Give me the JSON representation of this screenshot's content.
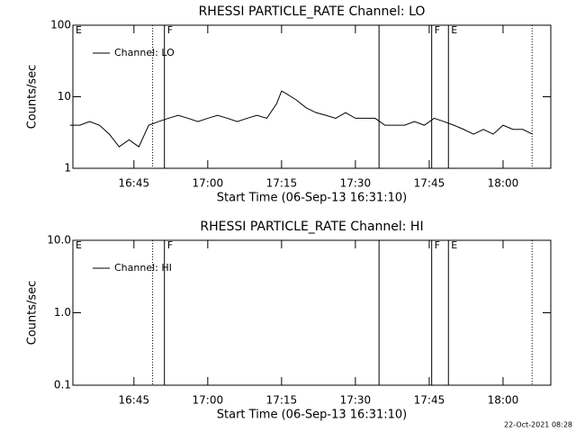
{
  "chart_data": [
    {
      "type": "line",
      "title": "RHESSI PARTICLE_RATE Channel: LO",
      "xlabel": "Start Time (06-Sep-13 16:31:10)",
      "ylabel": "Counts/sec",
      "log_y": true,
      "ylim": [
        1,
        100
      ],
      "yticks": [
        1,
        10,
        100
      ],
      "xlim": [
        992.6,
        1089.7
      ],
      "xticks": [
        {
          "value": 1005,
          "label": "16:45"
        },
        {
          "value": 1020,
          "label": "17:00"
        },
        {
          "value": 1035,
          "label": "17:15"
        },
        {
          "value": 1050,
          "label": "17:30"
        },
        {
          "value": 1065,
          "label": "17:45"
        },
        {
          "value": 1080,
          "label": "18:00"
        }
      ],
      "vlines": [
        {
          "x": 1008.8,
          "style": "dotted"
        },
        {
          "x": 1011.2,
          "style": "solid"
        },
        {
          "x": 1054.8,
          "style": "solid"
        },
        {
          "x": 1065.5,
          "style": "solid"
        },
        {
          "x": 1068.9,
          "style": "solid"
        },
        {
          "x": 1085.9,
          "style": "dotted"
        }
      ],
      "annotations": [
        {
          "x": 992.6,
          "text": "E"
        },
        {
          "x": 1011.2,
          "text": "F"
        },
        {
          "x": 1065.5,
          "text": "F"
        },
        {
          "x": 1068.9,
          "text": "E"
        }
      ],
      "series": [
        {
          "name": "Channel: LO",
          "color": "#000000",
          "x": [
            992,
            994,
            996,
            998,
            1000,
            1002,
            1004,
            1006,
            1008,
            1010,
            1012,
            1014,
            1016,
            1018,
            1020,
            1022,
            1024,
            1026,
            1028,
            1030,
            1032,
            1034,
            1035,
            1036,
            1038,
            1040,
            1042,
            1044,
            1046,
            1048,
            1050,
            1052,
            1054,
            1056,
            1058,
            1060,
            1062,
            1064,
            1066,
            1068,
            1070,
            1072,
            1074,
            1076,
            1078,
            1080,
            1082,
            1084,
            1086
          ],
          "values": [
            4,
            4,
            4.5,
            4,
            3,
            2,
            2.5,
            2,
            4,
            4.5,
            5,
            5.5,
            5,
            4.5,
            5,
            5.5,
            5,
            4.5,
            5,
            5.5,
            5,
            8,
            12,
            11,
            9,
            7,
            6,
            5.5,
            5,
            6,
            5,
            5,
            5,
            4,
            4,
            4,
            4.5,
            4,
            5,
            4.5,
            4,
            3.5,
            3,
            3.5,
            3,
            4,
            3.5,
            3.5,
            3
          ]
        }
      ]
    },
    {
      "type": "line",
      "title": "RHESSI PARTICLE_RATE Channel: HI",
      "xlabel": "Start Time (06-Sep-13 16:31:10)",
      "ylabel": "Counts/sec",
      "log_y": true,
      "ylim": [
        0.1,
        10
      ],
      "yticks": [
        0.1,
        {
          "value": 1,
          "label": "1.0"
        },
        {
          "value": 10,
          "label": "10.0"
        }
      ],
      "xlim": [
        992.6,
        1089.7
      ],
      "xticks": [
        {
          "value": 1005,
          "label": "16:45"
        },
        {
          "value": 1020,
          "label": "17:00"
        },
        {
          "value": 1035,
          "label": "17:15"
        },
        {
          "value": 1050,
          "label": "17:30"
        },
        {
          "value": 1065,
          "label": "17:45"
        },
        {
          "value": 1080,
          "label": "18:00"
        }
      ],
      "vlines": [
        {
          "x": 1008.8,
          "style": "dotted"
        },
        {
          "x": 1011.2,
          "style": "solid"
        },
        {
          "x": 1054.8,
          "style": "solid"
        },
        {
          "x": 1065.5,
          "style": "solid"
        },
        {
          "x": 1068.9,
          "style": "solid"
        },
        {
          "x": 1085.9,
          "style": "dotted"
        }
      ],
      "annotations": [
        {
          "x": 992.6,
          "text": "E"
        },
        {
          "x": 1011.2,
          "text": "F"
        },
        {
          "x": 1065.5,
          "text": "F"
        },
        {
          "x": 1068.9,
          "text": "E"
        }
      ],
      "series": [
        {
          "name": "Channel: HI",
          "color": "#000000",
          "x": [],
          "values": []
        }
      ]
    }
  ],
  "footer": "22-Oct-2021 08:28"
}
